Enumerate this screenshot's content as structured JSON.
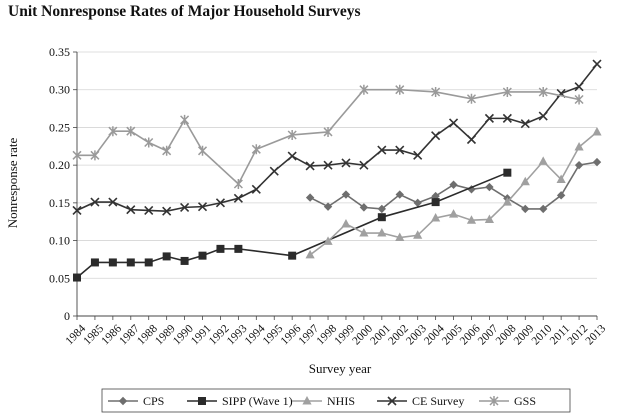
{
  "chart_data": {
    "type": "line",
    "title": "Unit Nonresponse Rates of Major Household Surveys",
    "xlabel": "Survey year",
    "ylabel": "Nonresponse rate",
    "ylim": [
      0,
      0.35
    ],
    "yticks": [
      "0",
      "0.05",
      "0.10",
      "0.15",
      "0.20",
      "0.25",
      "0.30",
      "0.35"
    ],
    "x_categories": [
      "1984",
      "1985",
      "1986",
      "1987",
      "1988",
      "1989",
      "1990",
      "1991",
      "1992",
      "1993",
      "1994",
      "1995",
      "1996",
      "1997",
      "1998",
      "1999",
      "2000",
      "2001",
      "2002",
      "2003",
      "2004",
      "2005",
      "2006",
      "2007",
      "2008",
      "2009",
      "2010",
      "2011",
      "2012",
      "2013"
    ],
    "grid": "horizontal",
    "legend_position": "bottom",
    "series": [
      {
        "name": "CPS",
        "color": "#6e6e6e",
        "marker": "diamond",
        "x": [
          1997,
          1998,
          1999,
          2000,
          2001,
          2002,
          2003,
          2004,
          2005,
          2006,
          2007,
          2008,
          2009,
          2010,
          2011,
          2012,
          2013
        ],
        "values": [
          0.157,
          0.145,
          0.161,
          0.144,
          0.142,
          0.161,
          0.15,
          0.159,
          0.174,
          0.168,
          0.171,
          0.156,
          0.142,
          0.142,
          0.16,
          0.2,
          0.204
        ]
      },
      {
        "name": "SIPP (Wave 1)",
        "color": "#2b2b2b",
        "marker": "square",
        "x": [
          1984,
          1985,
          1986,
          1987,
          1988,
          1989,
          1990,
          1991,
          1992,
          1993,
          1996,
          2001,
          2004,
          2008
        ],
        "values": [
          0.051,
          0.071,
          0.071,
          0.071,
          0.071,
          0.079,
          0.073,
          0.08,
          0.089,
          0.089,
          0.08,
          0.131,
          0.151,
          0.19
        ]
      },
      {
        "name": "NHIS",
        "color": "#a0a0a0",
        "marker": "triangle",
        "x": [
          1997,
          1998,
          1999,
          2000,
          2001,
          2002,
          2003,
          2004,
          2005,
          2006,
          2007,
          2008,
          2009,
          2010,
          2011,
          2012,
          2013
        ],
        "values": [
          0.081,
          0.099,
          0.122,
          0.11,
          0.11,
          0.104,
          0.107,
          0.13,
          0.135,
          0.127,
          0.128,
          0.151,
          0.178,
          0.205,
          0.181,
          0.224,
          0.244
        ]
      },
      {
        "name": "CE Survey",
        "color": "#333333",
        "marker": "x",
        "x": [
          1984,
          1985,
          1986,
          1987,
          1988,
          1989,
          1990,
          1991,
          1992,
          1993,
          1994,
          1995,
          1996,
          1997,
          1998,
          1999,
          2000,
          2001,
          2002,
          2003,
          2004,
          2005,
          2006,
          2007,
          2008,
          2009,
          2010,
          2011,
          2012,
          2013
        ],
        "values": [
          0.14,
          0.151,
          0.151,
          0.141,
          0.14,
          0.139,
          0.144,
          0.145,
          0.15,
          0.156,
          0.168,
          0.192,
          0.212,
          0.199,
          0.2,
          0.203,
          0.2,
          0.22,
          0.22,
          0.213,
          0.239,
          0.256,
          0.234,
          0.262,
          0.262,
          0.255,
          0.265,
          0.295,
          0.304,
          0.334
        ]
      },
      {
        "name": "GSS",
        "color": "#9a9a9a",
        "marker": "star",
        "x": [
          1984,
          1985,
          1986,
          1987,
          1988,
          1989,
          1990,
          1991,
          1993,
          1994,
          1996,
          1998,
          2000,
          2002,
          2004,
          2006,
          2008,
          2010,
          2012
        ],
        "values": [
          0.213,
          0.213,
          0.245,
          0.245,
          0.23,
          0.219,
          0.26,
          0.219,
          0.175,
          0.221,
          0.24,
          0.244,
          0.3,
          0.3,
          0.297,
          0.288,
          0.297,
          0.297,
          0.287
        ]
      }
    ]
  }
}
